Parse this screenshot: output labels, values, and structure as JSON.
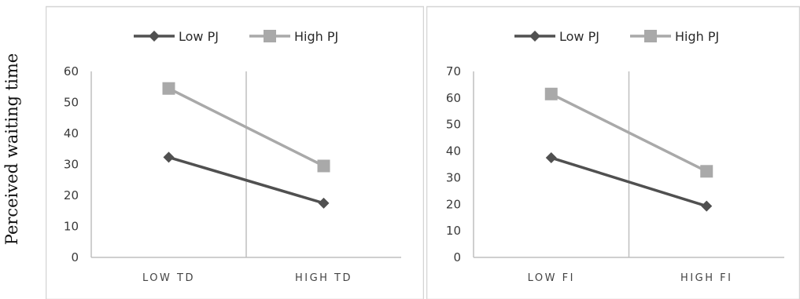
{
  "y_axis_label": "Perceived waiting time",
  "colors": {
    "low": "#505050",
    "high": "#a9a9a9",
    "border": "#d4d4d4",
    "axis": "#bfbfbf"
  },
  "chart_data": [
    {
      "type": "line",
      "categories": [
        "LOW TD",
        "HIGH TD"
      ],
      "series": [
        {
          "name": "Low PJ",
          "values": [
            32.3,
            17.5
          ]
        },
        {
          "name": "High PJ",
          "values": [
            54.5,
            29.5
          ]
        }
      ],
      "ylim": [
        0,
        60
      ],
      "yticks": [
        "0",
        "10",
        "20",
        "30",
        "40",
        "50",
        "60"
      ],
      "legend": "top-center",
      "grid": false
    },
    {
      "type": "line",
      "categories": [
        "LOW FI",
        "HIGH FI"
      ],
      "series": [
        {
          "name": "Low PJ",
          "values": [
            37.5,
            19.3
          ]
        },
        {
          "name": "High PJ",
          "values": [
            61.5,
            32.4
          ]
        }
      ],
      "ylim": [
        0,
        70
      ],
      "yticks": [
        "0",
        "10",
        "20",
        "30",
        "40",
        "50",
        "60",
        "70"
      ],
      "legend": "top-center",
      "grid": false
    }
  ]
}
